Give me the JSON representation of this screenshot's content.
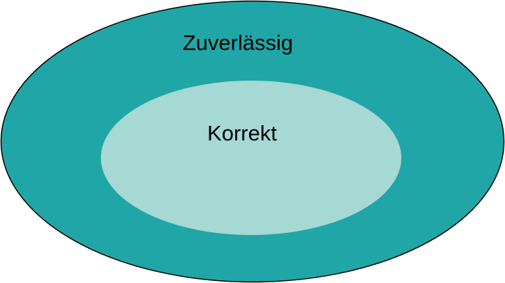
{
  "diagram": {
    "outer": {
      "label": "Zuverlässig",
      "fill": "#20a6a6",
      "stroke": "#000000"
    },
    "inner": {
      "label": "Korrekt",
      "fill": "#a6d8d4"
    }
  }
}
